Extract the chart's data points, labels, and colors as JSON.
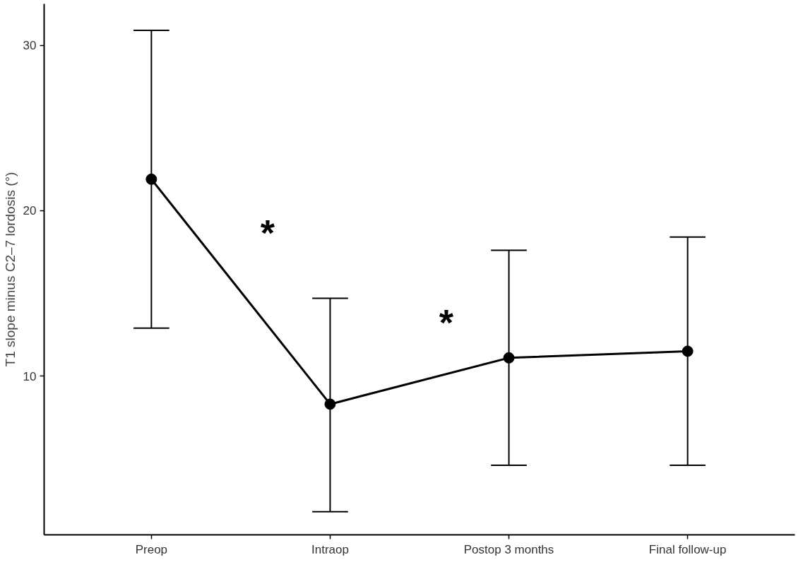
{
  "chart_data": {
    "type": "line",
    "ylabel": "T1 slope minus C2–7 lordosis (°)",
    "categories": [
      "Preop",
      "Intraop",
      "Postop 3 months",
      "Final follow-up"
    ],
    "color": "#000000",
    "values": [
      21.9,
      8.3,
      11.1,
      11.5
    ],
    "errors": [
      [
        12.9,
        30.9
      ],
      [
        1.8,
        14.7
      ],
      [
        4.6,
        17.6
      ],
      [
        4.6,
        18.4
      ]
    ],
    "ylim": [
      0.4,
      32.5
    ],
    "yticks": [
      10,
      20,
      30
    ],
    "marker": "circle",
    "line_style": "solid",
    "grid": false,
    "annotations": [
      "*",
      "*"
    ]
  }
}
